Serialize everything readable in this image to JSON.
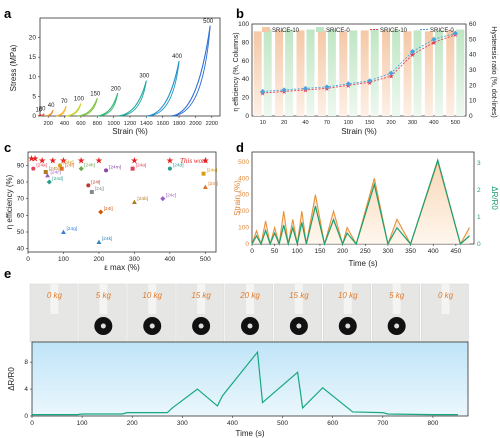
{
  "panels": {
    "a": "a",
    "b": "b",
    "c": "c",
    "d": "d",
    "e": "e"
  },
  "panel_a": {
    "ylabel": "Stress (MPa)",
    "xlabel": "Strain (%)",
    "xticks": [
      "200",
      "400",
      "600",
      "800",
      "1000",
      "1200",
      "1400",
      "1600",
      "1800",
      "2000",
      "2200"
    ],
    "yticks": [
      "0",
      "5",
      "10",
      "15",
      "20"
    ],
    "curve_labels": [
      "10",
      "20",
      "40",
      "70",
      "100",
      "150",
      "200",
      "300",
      "400",
      "500"
    ],
    "colors": [
      "#c0392b",
      "#e4572e",
      "#f08a24",
      "#f7b32b",
      "#c9d42f",
      "#7dc242",
      "#2eb872",
      "#22a6a0",
      "#1f8fc9",
      "#2f6fd6"
    ]
  },
  "panel_b": {
    "ylabel_left": "η efficiency (%, Columns)",
    "ylabel_right": "Hysteresis ratio (%, dot-lines)",
    "xlabel": "Strain (%)",
    "legend": [
      "SRICE-10",
      "SRICE-0",
      "SRICE-10",
      "SRICE-0"
    ],
    "categories": [
      "10",
      "20",
      "40",
      "70",
      "100",
      "150",
      "200",
      "300",
      "400",
      "500"
    ],
    "yticks_left": [
      "0",
      "20",
      "40",
      "60",
      "80",
      "100"
    ],
    "yticks_right": [
      "0",
      "10",
      "20",
      "30",
      "40",
      "50",
      "60"
    ]
  },
  "panel_c": {
    "ylabel": "η efficiency (%)",
    "xlabel": "ε max (%)",
    "this_work": "This work",
    "xticks": [
      "0",
      "100",
      "200",
      "300",
      "400",
      "500"
    ],
    "yticks": [
      "40",
      "50",
      "60",
      "70",
      "80",
      "90"
    ],
    "refs": [
      "[24a]",
      "[24b]",
      "[24c]",
      "[24d]",
      "[24e]",
      "[24f]",
      "[24g]",
      "[24h]",
      "[24i]",
      "[24j]",
      "[24k]",
      "[24l]",
      "[24m]"
    ]
  },
  "panel_d": {
    "ylabel_left": "Strain (%)",
    "ylabel_right": "ΔR/R0",
    "xlabel": "Time (s)",
    "xticks": [
      "0",
      "50",
      "100",
      "150",
      "200",
      "250",
      "300",
      "350",
      "400",
      "450"
    ],
    "yticks_left": [
      "0",
      "100",
      "200",
      "300",
      "400",
      "500"
    ],
    "yticks_right": [
      "0",
      "1",
      "2",
      "3"
    ]
  },
  "panel_e": {
    "weights": [
      "0 kg",
      "5 kg",
      "10 kg",
      "15 kg",
      "20 kg",
      "15 kg",
      "10 kg",
      "5 kg",
      "0 kg"
    ],
    "ylabel": "ΔR/R0",
    "xlabel": "Time (s)",
    "xticks": [
      "0",
      "100",
      "200",
      "300",
      "400",
      "500",
      "600",
      "700",
      "800"
    ],
    "yticks": [
      "0",
      "4",
      "8"
    ]
  },
  "chart_data": [
    {
      "type": "line",
      "panel": "a",
      "xlabel": "Strain (%)",
      "ylabel": "Stress (MPa)",
      "ylim": [
        0,
        25
      ],
      "series": [
        {
          "name": "10",
          "x": [
            80,
            110
          ],
          "y": [
            0,
            0.4
          ]
        },
        {
          "name": "20",
          "x": [
            110,
            150
          ],
          "y": [
            0,
            0.6
          ]
        },
        {
          "name": "40",
          "x": [
            180,
            260
          ],
          "y": [
            0,
            1.5
          ]
        },
        {
          "name": "70",
          "x": [
            300,
            420
          ],
          "y": [
            0,
            2.5
          ]
        },
        {
          "name": "100",
          "x": [
            420,
            600
          ],
          "y": [
            0,
            3.2
          ]
        },
        {
          "name": "150",
          "x": [
            560,
            800
          ],
          "y": [
            0,
            4.5
          ]
        },
        {
          "name": "200",
          "x": [
            800,
            1050
          ],
          "y": [
            0,
            5.8
          ]
        },
        {
          "name": "300",
          "x": [
            1050,
            1400
          ],
          "y": [
            0,
            9
          ]
        },
        {
          "name": "400",
          "x": [
            1400,
            1800
          ],
          "y": [
            0,
            14
          ]
        },
        {
          "name": "500",
          "x": [
            1700,
            2180
          ],
          "y": [
            0,
            23
          ]
        }
      ]
    },
    {
      "type": "bar",
      "panel": "b",
      "categories": [
        "10",
        "20",
        "40",
        "70",
        "100",
        "150",
        "200",
        "300",
        "400",
        "500"
      ],
      "series": [
        {
          "name": "SRICE-10",
          "values": [
            92,
            93,
            93,
            93,
            92,
            93,
            93,
            92,
            92,
            93
          ]
        },
        {
          "name": "SRICE-0",
          "values": [
            94,
            94,
            94,
            94,
            93,
            94,
            94,
            93,
            93,
            94
          ]
        },
        {
          "name": "SRICE-10",
          "values": [
            15,
            16,
            17,
            18,
            20,
            22,
            26,
            40,
            48,
            53
          ]
        },
        {
          "name": "SRICE-0",
          "values": [
            16,
            17,
            18,
            19,
            21,
            23,
            28,
            42,
            50,
            54
          ]
        }
      ]
    },
    {
      "type": "scatter",
      "panel": "c",
      "xlabel": "ε max (%)",
      "ylabel": "η efficiency (%)",
      "series": [
        {
          "name": "This work",
          "x": [
            10,
            20,
            40,
            70,
            100,
            150,
            200,
            300,
            400,
            500
          ],
          "y": [
            94,
            94,
            93,
            93,
            93,
            93,
            93,
            93,
            93,
            93
          ]
        },
        {
          "name": "refs",
          "x": [
            15,
            50,
            55,
            60,
            90,
            95,
            100,
            150,
            170,
            180,
            200,
            205,
            220,
            295,
            300,
            380,
            400,
            495,
            500
          ],
          "y": [
            88,
            86,
            84,
            80,
            90,
            88,
            50,
            88,
            78,
            74,
            44,
            62,
            87,
            88,
            68,
            70,
            88,
            85,
            77
          ]
        }
      ]
    },
    {
      "type": "line",
      "panel": "d",
      "xlabel": "Time (s)",
      "series": [
        {
          "name": "Strain (%)",
          "x": [
            0,
            10,
            20,
            30,
            40,
            50,
            60,
            70,
            80,
            90,
            100,
            110,
            120,
            140,
            160,
            180,
            200,
            210,
            230,
            270,
            300,
            320,
            350,
            410,
            460,
            480
          ],
          "y": [
            0,
            80,
            0,
            140,
            0,
            100,
            0,
            200,
            0,
            150,
            0,
            200,
            0,
            300,
            0,
            200,
            0,
            100,
            0,
            400,
            0,
            150,
            0,
            500,
            0,
            100
          ]
        },
        {
          "name": "ΔR/R0",
          "x": [
            0,
            10,
            20,
            30,
            40,
            50,
            60,
            70,
            80,
            90,
            100,
            110,
            120,
            140,
            160,
            180,
            200,
            210,
            230,
            270,
            300,
            320,
            350,
            410,
            460,
            480
          ],
          "y": [
            0,
            0.3,
            0,
            0.5,
            0,
            0.4,
            0,
            0.7,
            0,
            0.6,
            0,
            0.8,
            0,
            1.4,
            0,
            0.9,
            0,
            0.4,
            0,
            2.2,
            0,
            0.6,
            0,
            3.1,
            0,
            0.3
          ]
        }
      ]
    },
    {
      "type": "line",
      "panel": "e",
      "xlabel": "Time (s)",
      "ylabel": "ΔR/R0",
      "series": [
        {
          "name": "ΔR/R0",
          "x": [
            0,
            90,
            100,
            180,
            190,
            270,
            280,
            330,
            370,
            380,
            450,
            460,
            530,
            540,
            580,
            630,
            640,
            700,
            710,
            800,
            850
          ],
          "y": [
            0.2,
            0.2,
            0.3,
            0.3,
            0.5,
            0.5,
            1.2,
            4,
            1.5,
            3,
            9.5,
            2,
            6.5,
            1.2,
            4.2,
            1.2,
            0.6,
            0.5,
            0.3,
            0.2,
            0.2
          ]
        }
      ]
    }
  ]
}
